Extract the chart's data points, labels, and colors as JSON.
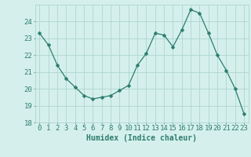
{
  "x": [
    0,
    1,
    2,
    3,
    4,
    5,
    6,
    7,
    8,
    9,
    10,
    11,
    12,
    13,
    14,
    15,
    16,
    17,
    18,
    19,
    20,
    21,
    22,
    23
  ],
  "y": [
    23.3,
    22.6,
    21.4,
    20.6,
    20.1,
    19.6,
    19.4,
    19.5,
    19.6,
    19.9,
    20.2,
    21.4,
    22.1,
    23.3,
    23.2,
    22.5,
    23.5,
    24.7,
    24.5,
    23.3,
    22.0,
    21.1,
    20.0,
    18.5
  ],
  "line_color": "#2d7d6f",
  "marker": "D",
  "marker_size": 2.5,
  "bg_color": "#d5f0ec",
  "grid_color": "#aed5ce",
  "axis_color": "#2d7d6f",
  "xlabel": "Humidex (Indice chaleur)",
  "xlim": [
    -0.5,
    23.5
  ],
  "ylim": [
    18,
    25
  ],
  "yticks": [
    18,
    19,
    20,
    21,
    22,
    23,
    24
  ],
  "xticks": [
    0,
    1,
    2,
    3,
    4,
    5,
    6,
    7,
    8,
    9,
    10,
    11,
    12,
    13,
    14,
    15,
    16,
    17,
    18,
    19,
    20,
    21,
    22,
    23
  ],
  "xlabel_fontsize": 7,
  "tick_fontsize": 6.5
}
